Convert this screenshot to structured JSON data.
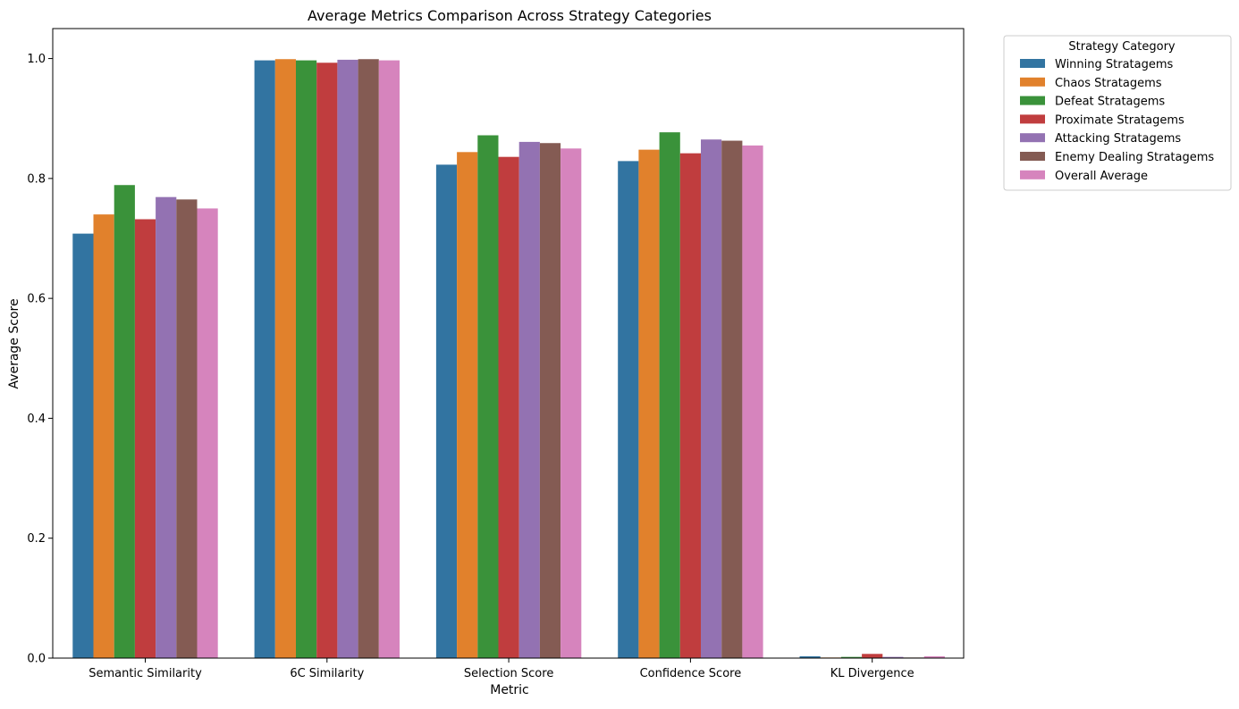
{
  "chart_data": {
    "type": "bar",
    "title": "Average Metrics Comparison Across Strategy Categories",
    "xlabel": "Metric",
    "ylabel": "Average Score",
    "ylim": [
      0,
      1.05
    ],
    "yticks": [
      "0.0",
      "0.2",
      "0.4",
      "0.6",
      "0.8",
      "1.0"
    ],
    "grid": false,
    "legend": {
      "title": "Strategy Category",
      "placement": "outside-top-right"
    },
    "categories": [
      "Semantic Similarity",
      "6C Similarity",
      "Selection Score",
      "Confidence Score",
      "KL Divergence"
    ],
    "series": [
      {
        "name": "Winning Stratagems",
        "color": "#3274a1",
        "values": [
          0.708,
          0.997,
          0.823,
          0.829,
          0.003
        ]
      },
      {
        "name": "Chaos Stratagems",
        "color": "#e1812c",
        "values": [
          0.74,
          0.999,
          0.844,
          0.848,
          0.001
        ]
      },
      {
        "name": "Defeat Stratagems",
        "color": "#3a923a",
        "values": [
          0.789,
          0.997,
          0.872,
          0.877,
          0.002
        ]
      },
      {
        "name": "Proximate Stratagems",
        "color": "#c03d3e",
        "values": [
          0.732,
          0.993,
          0.836,
          0.842,
          0.007
        ]
      },
      {
        "name": "Attacking Stratagems",
        "color": "#9372b2",
        "values": [
          0.769,
          0.998,
          0.861,
          0.865,
          0.002
        ]
      },
      {
        "name": "Enemy Dealing Stratagems",
        "color": "#845b53",
        "values": [
          0.765,
          0.999,
          0.859,
          0.863,
          0.001
        ]
      },
      {
        "name": "Overall Average",
        "color": "#d684bd",
        "values": [
          0.75,
          0.997,
          0.85,
          0.855,
          0.003
        ]
      }
    ]
  }
}
